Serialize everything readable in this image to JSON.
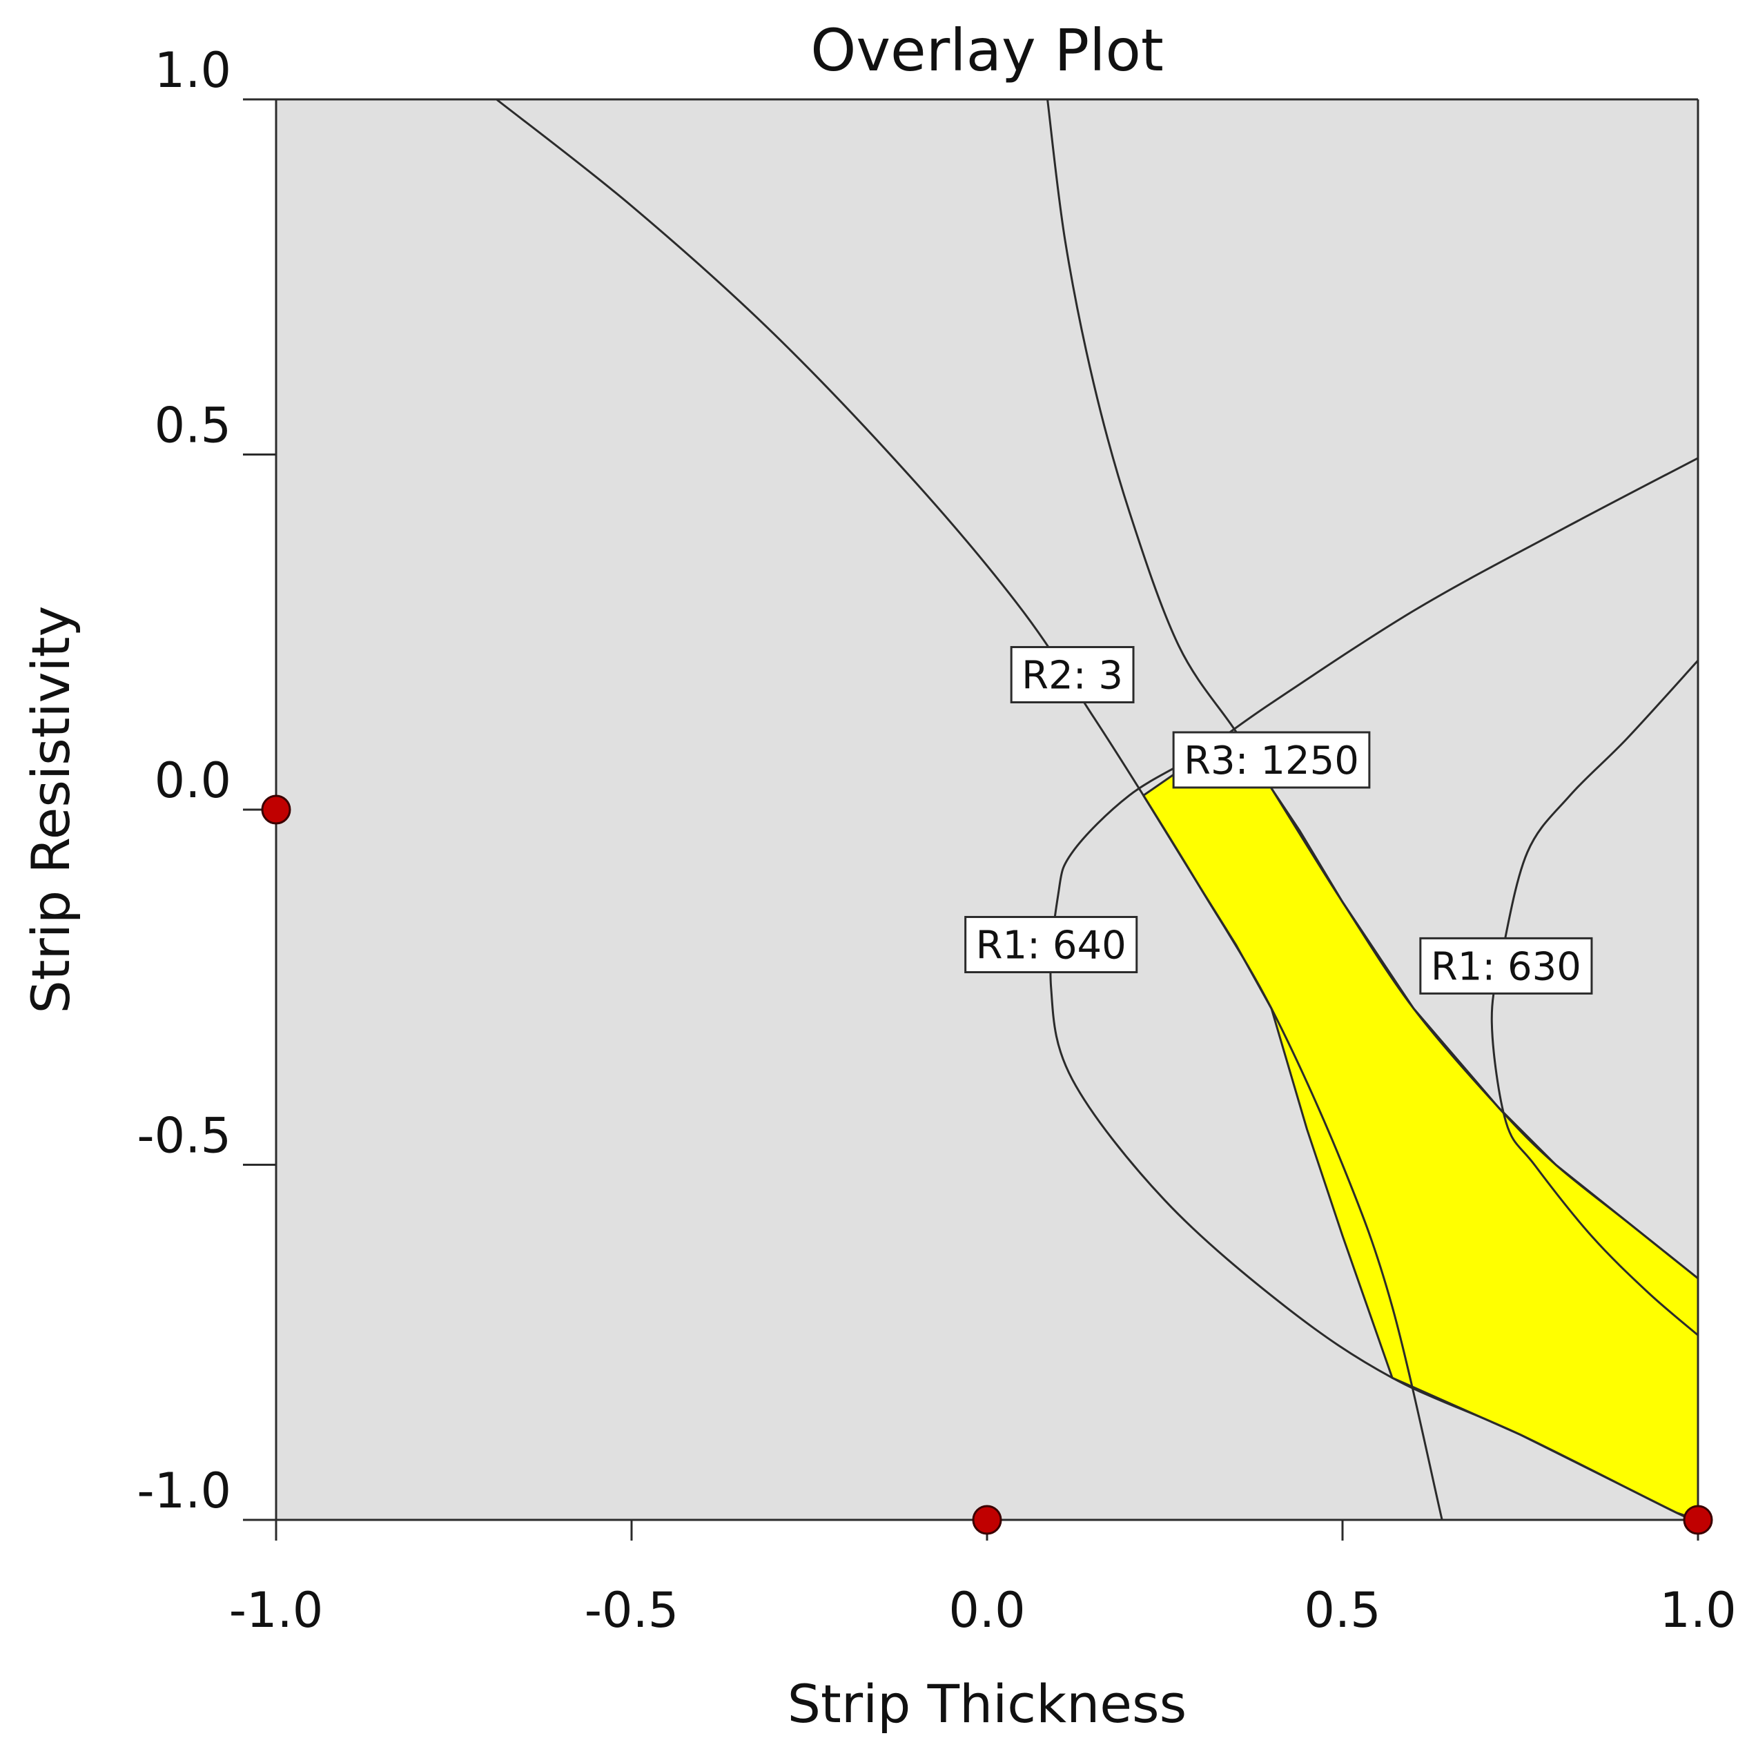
{
  "chart_data": {
    "type": "overlay-contour",
    "title": "Overlay Plot",
    "xlabel": "Strip Thickness",
    "ylabel": "Strip Resistivity",
    "xlim": [
      -1.0,
      1.0
    ],
    "ylim": [
      -1.0,
      1.0
    ],
    "x_ticks": [
      "-1.0",
      "-0.5",
      "0.0",
      "0.5",
      "1.0"
    ],
    "y_ticks": [
      "-1.0",
      "-0.5",
      "0.0",
      "0.5",
      "1.0"
    ],
    "grid": false,
    "colors": {
      "plot_background": "#e0e0e0",
      "feasible_region": "#ffff00",
      "contour_line": "#2b2b2b",
      "design_point": "#c00000"
    },
    "contours": [
      {
        "label": "R2: 3",
        "points": [
          [
            -0.69,
            1.0
          ],
          [
            -0.5,
            0.85
          ],
          [
            -0.3,
            0.67
          ],
          [
            -0.1,
            0.46
          ],
          [
            0.05,
            0.28
          ],
          [
            0.15,
            0.13
          ],
          [
            0.22,
            0.02
          ],
          [
            0.3,
            -0.11
          ],
          [
            0.4,
            -0.28
          ],
          [
            0.5,
            -0.5
          ],
          [
            0.57,
            -0.7
          ],
          [
            0.64,
            -1.0
          ]
        ],
        "label_at": [
          0.12,
          0.19
        ]
      },
      {
        "label": "R3: 1250",
        "points": [
          [
            0.085,
            1.0
          ],
          [
            0.11,
            0.8
          ],
          [
            0.15,
            0.6
          ],
          [
            0.2,
            0.42
          ],
          [
            0.27,
            0.23
          ],
          [
            0.35,
            0.11
          ],
          [
            0.4,
            0.03
          ],
          [
            0.5,
            -0.13
          ],
          [
            0.6,
            -0.28
          ],
          [
            0.72,
            -0.42
          ],
          [
            0.8,
            -0.5
          ],
          [
            0.9,
            -0.58
          ],
          [
            1.0,
            -0.66
          ]
        ],
        "label_at": [
          0.4,
          0.07
        ]
      },
      {
        "label": "R1: 640",
        "points": [
          [
            1.0,
            0.495
          ],
          [
            0.8,
            0.39
          ],
          [
            0.6,
            0.28
          ],
          [
            0.4,
            0.15
          ],
          [
            0.3,
            0.08
          ],
          [
            0.2,
            0.02
          ],
          [
            0.12,
            -0.06
          ],
          [
            0.1,
            -0.12
          ],
          [
            0.09,
            -0.25
          ],
          [
            0.12,
            -0.38
          ],
          [
            0.25,
            -0.55
          ],
          [
            0.42,
            -0.7
          ],
          [
            0.57,
            -0.8
          ],
          [
            0.75,
            -0.88
          ],
          [
            0.97,
            -0.99
          ],
          [
            1.0,
            -1.0
          ]
        ],
        "label_at": [
          0.09,
          -0.19
        ]
      },
      {
        "label": "R1: 630",
        "points": [
          [
            1.0,
            0.21
          ],
          [
            0.9,
            0.1
          ],
          [
            0.82,
            0.02
          ],
          [
            0.76,
            -0.06
          ],
          [
            0.725,
            -0.2
          ],
          [
            0.71,
            -0.3
          ],
          [
            0.73,
            -0.44
          ],
          [
            0.77,
            -0.5
          ],
          [
            0.85,
            -0.6
          ],
          [
            0.93,
            -0.68
          ],
          [
            1.0,
            -0.74
          ]
        ],
        "label_at": [
          0.73,
          -0.22
        ]
      }
    ],
    "feasible_region": [
      [
        0.22,
        0.02
      ],
      [
        0.35,
        0.11
      ],
      [
        0.38,
        0.06
      ],
      [
        0.44,
        -0.03
      ],
      [
        0.5,
        -0.13
      ],
      [
        0.6,
        -0.28
      ],
      [
        0.72,
        -0.42
      ],
      [
        0.8,
        -0.5
      ],
      [
        0.9,
        -0.58
      ],
      [
        1.0,
        -0.66
      ],
      [
        1.0,
        -1.0
      ],
      [
        0.97,
        -0.99
      ],
      [
        0.75,
        -0.88
      ],
      [
        0.57,
        -0.8
      ],
      [
        0.5,
        -0.6
      ],
      [
        0.45,
        -0.45
      ],
      [
        0.4,
        -0.28
      ],
      [
        0.35,
        -0.19
      ],
      [
        0.3,
        -0.11
      ]
    ],
    "design_points": [
      [
        -1.0,
        0.0
      ],
      [
        0.0,
        -1.0
      ],
      [
        1.0,
        -1.0
      ]
    ]
  }
}
